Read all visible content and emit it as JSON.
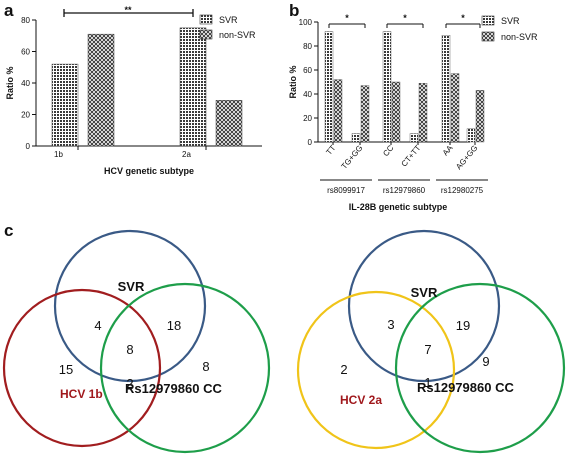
{
  "panels": {
    "a": "a",
    "b": "b",
    "c": "c"
  },
  "chart_data": [
    {
      "type": "bar",
      "panel": "a",
      "categories": [
        "1b",
        "2a"
      ],
      "series": [
        {
          "name": "SVR",
          "values": [
            52,
            75
          ]
        },
        {
          "name": "non-SVR",
          "values": [
            71,
            29
          ]
        }
      ],
      "xlabel": "HCV genetic subtype",
      "ylabel": "Ratio %",
      "ylim": [
        0,
        80
      ],
      "yticks": [
        "0",
        "20",
        "40",
        "60",
        "80"
      ],
      "significance": "**",
      "legend": "top-right",
      "grid": false
    },
    {
      "type": "bar",
      "panel": "b",
      "categories": [
        "TT",
        "TG+GG",
        "CC",
        "CT+TT",
        "AA",
        "AG+GG"
      ],
      "groups": [
        "rs8099917",
        "rs12979860",
        "rs12980275"
      ],
      "series": [
        {
          "name": "SVR",
          "values": [
            92,
            7,
            92,
            7,
            89,
            11
          ]
        },
        {
          "name": "non-SVR",
          "values": [
            52,
            47,
            50,
            49,
            57,
            43
          ]
        }
      ],
      "xlabel": "IL-28B genetic subtype",
      "ylabel": "Ratio %",
      "ylim": [
        0,
        100
      ],
      "yticks": [
        "0",
        "20",
        "40",
        "60",
        "80",
        "100"
      ],
      "significance": [
        "*",
        "*",
        "*"
      ],
      "legend": "top-right",
      "grid": false
    }
  ],
  "venns": [
    {
      "labels": {
        "svr": "SVR",
        "hcv": "HCV 1b",
        "rs": "Rs12979860 CC"
      },
      "counts": {
        "svr_hcv": "4",
        "svr_rs": "18",
        "all": "8",
        "hcv_only": "15",
        "hcv_rs": "2",
        "rs_only": "8"
      },
      "colors": {
        "svr": "#3a5a86",
        "hcv": "#a11d1f",
        "rs": "#1e9e4a"
      }
    },
    {
      "labels": {
        "svr": "SVR",
        "hcv": "HCV 2a",
        "rs": "Rs12979860 CC"
      },
      "counts": {
        "svr_hcv": "3",
        "svr_rs": "19",
        "all": "7",
        "hcv_only": "2",
        "hcv_rs": "1",
        "rs_only": "9"
      },
      "colors": {
        "svr": "#3a5a86",
        "hcv": "#f0c419",
        "rs": "#1e9e4a"
      }
    }
  ]
}
